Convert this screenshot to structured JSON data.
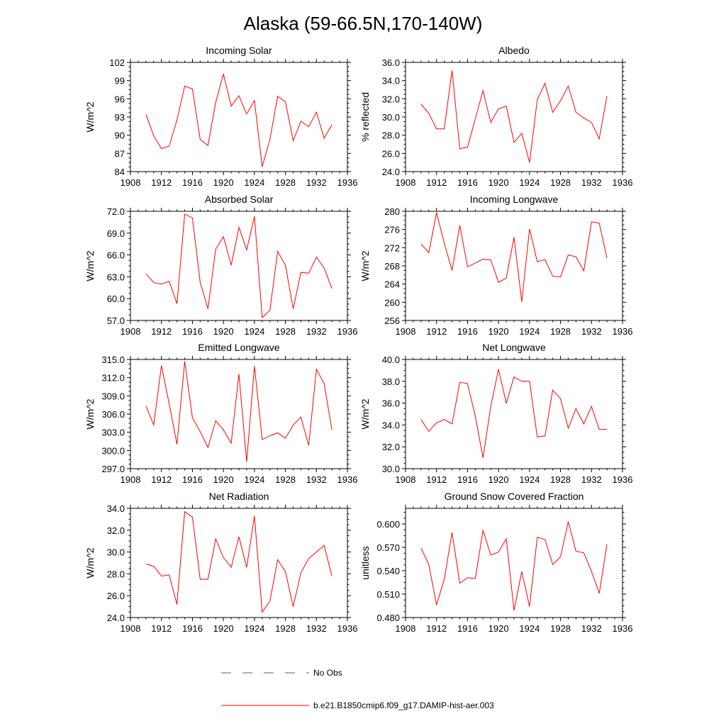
{
  "figure": {
    "title": "Alaska (59-66.5N,170-140W)"
  },
  "legend": {
    "placement": "bottom-center",
    "entries": [
      {
        "label": "No Obs",
        "style": "dashed",
        "color": "#5555aa"
      },
      {
        "label": "b.e21.B1850cmip6.f09_g17.DAMIP-hist-aer.003",
        "style": "solid",
        "color": "#ff0000"
      }
    ]
  },
  "chart_data": [
    {
      "type": "line",
      "title": "Incoming Solar",
      "xlabel": "",
      "ylabel": "W/m^2",
      "xlim": [
        1908,
        1936
      ],
      "ylim": [
        84,
        102
      ],
      "xticks": [
        1908,
        1912,
        1916,
        1920,
        1924,
        1928,
        1932,
        1936
      ],
      "yticks": [
        84,
        87,
        90,
        93,
        96,
        99,
        102
      ],
      "ytick_labels": [
        "84",
        "87",
        "90",
        "93",
        "96",
        "99",
        "102"
      ],
      "series": [
        {
          "color": "#ff0000",
          "values": [
            [
              1910,
              93.4
            ],
            [
              1911,
              89.9
            ],
            [
              1912,
              87.8
            ],
            [
              1913,
              88.2
            ],
            [
              1914,
              92.5
            ],
            [
              1915,
              98.1
            ],
            [
              1916,
              97.6
            ],
            [
              1917,
              89.3
            ],
            [
              1918,
              88.3
            ],
            [
              1919,
              95.4
            ],
            [
              1920,
              100.1
            ],
            [
              1921,
              94.8
            ],
            [
              1922,
              96.5
            ],
            [
              1923,
              93.5
            ],
            [
              1924,
              95.7
            ],
            [
              1925,
              84.8
            ],
            [
              1926,
              89.3
            ],
            [
              1927,
              96.4
            ],
            [
              1928,
              95.5
            ],
            [
              1929,
              89.1
            ],
            [
              1930,
              92.3
            ],
            [
              1931,
              91.4
            ],
            [
              1932,
              93.8
            ],
            [
              1933,
              89.5
            ],
            [
              1934,
              91.7
            ]
          ]
        }
      ]
    },
    {
      "type": "line",
      "title": "Albedo",
      "xlabel": "",
      "ylabel": "% reflected",
      "xlim": [
        1908,
        1936
      ],
      "ylim": [
        24,
        36
      ],
      "xticks": [
        1908,
        1912,
        1916,
        1920,
        1924,
        1928,
        1932,
        1936
      ],
      "yticks": [
        24,
        26,
        28,
        30,
        32,
        34,
        36
      ],
      "ytick_labels": [
        "24.0",
        "26.0",
        "28.0",
        "30.0",
        "32.0",
        "34.0",
        "36.0"
      ],
      "series": [
        {
          "color": "#ff0000",
          "values": [
            [
              1910,
              31.4
            ],
            [
              1911,
              30.4
            ],
            [
              1912,
              28.7
            ],
            [
              1913,
              28.7
            ],
            [
              1914,
              35.1
            ],
            [
              1915,
              26.5
            ],
            [
              1916,
              26.7
            ],
            [
              1917,
              29.8
            ],
            [
              1918,
              32.9
            ],
            [
              1919,
              29.4
            ],
            [
              1920,
              30.9
            ],
            [
              1921,
              31.2
            ],
            [
              1922,
              27.2
            ],
            [
              1923,
              28.2
            ],
            [
              1924,
              25.0
            ],
            [
              1925,
              31.9
            ],
            [
              1926,
              33.7
            ],
            [
              1927,
              30.5
            ],
            [
              1928,
              31.8
            ],
            [
              1929,
              33.4
            ],
            [
              1930,
              30.5
            ],
            [
              1931,
              29.9
            ],
            [
              1932,
              29.4
            ],
            [
              1933,
              27.6
            ],
            [
              1934,
              32.3
            ]
          ]
        }
      ]
    },
    {
      "type": "line",
      "title": "Absorbed Solar",
      "xlabel": "",
      "ylabel": "W/m^2",
      "xlim": [
        1908,
        1936
      ],
      "ylim": [
        57,
        72
      ],
      "xticks": [
        1908,
        1912,
        1916,
        1920,
        1924,
        1928,
        1932,
        1936
      ],
      "yticks": [
        57,
        60,
        63,
        66,
        69,
        72
      ],
      "ytick_labels": [
        "57.0",
        "60.0",
        "63.0",
        "66.0",
        "69.0",
        "72.0"
      ],
      "series": [
        {
          "color": "#ff0000",
          "values": [
            [
              1910,
              63.4
            ],
            [
              1911,
              62.2
            ],
            [
              1912,
              62.0
            ],
            [
              1913,
              62.4
            ],
            [
              1914,
              59.3
            ],
            [
              1915,
              71.6
            ],
            [
              1916,
              71.1
            ],
            [
              1917,
              62.2
            ],
            [
              1918,
              58.6
            ],
            [
              1919,
              66.8
            ],
            [
              1920,
              68.5
            ],
            [
              1921,
              64.6
            ],
            [
              1922,
              69.8
            ],
            [
              1923,
              66.7
            ],
            [
              1924,
              71.3
            ],
            [
              1925,
              57.4
            ],
            [
              1926,
              58.4
            ],
            [
              1927,
              66.5
            ],
            [
              1928,
              64.6
            ],
            [
              1929,
              58.6
            ],
            [
              1930,
              63.6
            ],
            [
              1931,
              63.5
            ],
            [
              1932,
              65.7
            ],
            [
              1933,
              64.2
            ],
            [
              1934,
              61.4
            ]
          ]
        }
      ]
    },
    {
      "type": "line",
      "title": "Incoming Longwave",
      "xlabel": "",
      "ylabel": "W/m^2",
      "xlim": [
        1908,
        1936
      ],
      "ylim": [
        256,
        280
      ],
      "xticks": [
        1908,
        1912,
        1916,
        1920,
        1924,
        1928,
        1932,
        1936
      ],
      "yticks": [
        256,
        260,
        264,
        268,
        272,
        276,
        280
      ],
      "ytick_labels": [
        "256",
        "260",
        "264",
        "268",
        "272",
        "276",
        "280"
      ],
      "series": [
        {
          "color": "#ff0000",
          "values": [
            [
              1910,
              272.8
            ],
            [
              1911,
              270.9
            ],
            [
              1912,
              279.7
            ],
            [
              1913,
              273.0
            ],
            [
              1914,
              267.0
            ],
            [
              1915,
              276.9
            ],
            [
              1916,
              267.8
            ],
            [
              1917,
              268.6
            ],
            [
              1918,
              269.5
            ],
            [
              1919,
              269.3
            ],
            [
              1920,
              264.4
            ],
            [
              1921,
              265.3
            ],
            [
              1922,
              274.3
            ],
            [
              1923,
              260.1
            ],
            [
              1924,
              276.1
            ],
            [
              1925,
              268.9
            ],
            [
              1926,
              269.4
            ],
            [
              1927,
              265.7
            ],
            [
              1928,
              265.6
            ],
            [
              1929,
              270.4
            ],
            [
              1930,
              270.0
            ],
            [
              1931,
              266.9
            ],
            [
              1932,
              277.7
            ],
            [
              1933,
              277.4
            ],
            [
              1934,
              269.7
            ]
          ]
        }
      ]
    },
    {
      "type": "line",
      "title": "Emitted Longwave",
      "xlabel": "",
      "ylabel": "W/m^2",
      "xlim": [
        1908,
        1936
      ],
      "ylim": [
        297,
        315
      ],
      "xticks": [
        1908,
        1912,
        1916,
        1920,
        1924,
        1928,
        1932,
        1936
      ],
      "yticks": [
        297,
        300,
        303,
        306,
        309,
        312,
        315
      ],
      "ytick_labels": [
        "297.0",
        "300.0",
        "303.0",
        "306.0",
        "309.0",
        "312.0",
        "315.0"
      ],
      "series": [
        {
          "color": "#ff0000",
          "values": [
            [
              1910,
              307.3
            ],
            [
              1911,
              304.2
            ],
            [
              1912,
              314.0
            ],
            [
              1913,
              307.7
            ],
            [
              1914,
              301.0
            ],
            [
              1915,
              314.7
            ],
            [
              1916,
              305.4
            ],
            [
              1917,
              303.1
            ],
            [
              1918,
              300.5
            ],
            [
              1919,
              304.9
            ],
            [
              1920,
              303.4
            ],
            [
              1921,
              301.2
            ],
            [
              1922,
              312.6
            ],
            [
              1923,
              298.1
            ],
            [
              1924,
              313.9
            ],
            [
              1925,
              301.8
            ],
            [
              1926,
              302.4
            ],
            [
              1927,
              302.9
            ],
            [
              1928,
              302.0
            ],
            [
              1929,
              304.2
            ],
            [
              1930,
              305.5
            ],
            [
              1931,
              300.8
            ],
            [
              1932,
              313.4
            ],
            [
              1933,
              311.0
            ],
            [
              1934,
              303.4
            ]
          ]
        }
      ]
    },
    {
      "type": "line",
      "title": "Net Longwave",
      "xlabel": "",
      "ylabel": "W/m^2",
      "xlim": [
        1908,
        1936
      ],
      "ylim": [
        30,
        40
      ],
      "xticks": [
        1908,
        1912,
        1916,
        1920,
        1924,
        1928,
        1932,
        1936
      ],
      "yticks": [
        30,
        32,
        34,
        36,
        38,
        40
      ],
      "ytick_labels": [
        "30.0",
        "32.0",
        "34.0",
        "36.0",
        "38.0",
        "40.0"
      ],
      "series": [
        {
          "color": "#ff0000",
          "values": [
            [
              1910,
              34.5
            ],
            [
              1911,
              33.4
            ],
            [
              1912,
              34.2
            ],
            [
              1913,
              34.5
            ],
            [
              1914,
              34.1
            ],
            [
              1915,
              37.9
            ],
            [
              1916,
              37.8
            ],
            [
              1917,
              34.8
            ],
            [
              1918,
              31.0
            ],
            [
              1919,
              35.7
            ],
            [
              1920,
              39.1
            ],
            [
              1921,
              36.0
            ],
            [
              1922,
              38.4
            ],
            [
              1923,
              38.0
            ],
            [
              1924,
              38.0
            ],
            [
              1925,
              32.9
            ],
            [
              1926,
              33.0
            ],
            [
              1927,
              37.2
            ],
            [
              1928,
              36.4
            ],
            [
              1929,
              33.7
            ],
            [
              1930,
              35.5
            ],
            [
              1931,
              34.1
            ],
            [
              1932,
              35.7
            ],
            [
              1933,
              33.6
            ],
            [
              1934,
              33.6
            ]
          ]
        }
      ]
    },
    {
      "type": "line",
      "title": "Net Radiation",
      "xlabel": "",
      "ylabel": "W/m^2",
      "xlim": [
        1908,
        1936
      ],
      "ylim": [
        24,
        34
      ],
      "xticks": [
        1908,
        1912,
        1916,
        1920,
        1924,
        1928,
        1932,
        1936
      ],
      "yticks": [
        24,
        26,
        28,
        30,
        32,
        34
      ],
      "ytick_labels": [
        "24.0",
        "26.0",
        "28.0",
        "30.0",
        "32.0",
        "34.0"
      ],
      "series": [
        {
          "color": "#ff0000",
          "values": [
            [
              1910,
              28.9
            ],
            [
              1911,
              28.7
            ],
            [
              1912,
              27.8
            ],
            [
              1913,
              27.9
            ],
            [
              1914,
              25.2
            ],
            [
              1915,
              33.7
            ],
            [
              1916,
              33.2
            ],
            [
              1917,
              27.5
            ],
            [
              1918,
              27.5
            ],
            [
              1919,
              31.2
            ],
            [
              1920,
              29.5
            ],
            [
              1921,
              28.6
            ],
            [
              1922,
              31.4
            ],
            [
              1923,
              28.6
            ],
            [
              1924,
              33.3
            ],
            [
              1925,
              24.5
            ],
            [
              1926,
              25.5
            ],
            [
              1927,
              29.3
            ],
            [
              1928,
              28.2
            ],
            [
              1929,
              25.0
            ],
            [
              1930,
              28.1
            ],
            [
              1931,
              29.4
            ],
            [
              1932,
              30.0
            ],
            [
              1933,
              30.6
            ],
            [
              1934,
              27.8
            ]
          ]
        }
      ]
    },
    {
      "type": "line",
      "title": "Ground Snow Covered Fraction",
      "xlabel": "",
      "ylabel": "unitless",
      "xlim": [
        1908,
        1936
      ],
      "ylim": [
        0.48,
        0.62
      ],
      "xticks": [
        1908,
        1912,
        1916,
        1920,
        1924,
        1928,
        1932,
        1936
      ],
      "yticks": [
        0.48,
        0.51,
        0.54,
        0.57,
        0.6
      ],
      "ytick_labels": [
        "0.480",
        "0.510",
        "0.540",
        "0.570",
        "0.600"
      ],
      "series": [
        {
          "color": "#ff0000",
          "values": [
            [
              1910,
              0.569
            ],
            [
              1911,
              0.548
            ],
            [
              1912,
              0.496
            ],
            [
              1913,
              0.529
            ],
            [
              1914,
              0.589
            ],
            [
              1915,
              0.524
            ],
            [
              1916,
              0.531
            ],
            [
              1917,
              0.53
            ],
            [
              1918,
              0.592
            ],
            [
              1919,
              0.56
            ],
            [
              1920,
              0.564
            ],
            [
              1921,
              0.581
            ],
            [
              1922,
              0.489
            ],
            [
              1923,
              0.539
            ],
            [
              1924,
              0.494
            ],
            [
              1925,
              0.583
            ],
            [
              1926,
              0.58
            ],
            [
              1927,
              0.548
            ],
            [
              1928,
              0.558
            ],
            [
              1929,
              0.603
            ],
            [
              1930,
              0.565
            ],
            [
              1931,
              0.563
            ],
            [
              1932,
              0.539
            ],
            [
              1933,
              0.511
            ],
            [
              1934,
              0.574
            ]
          ]
        }
      ]
    }
  ]
}
